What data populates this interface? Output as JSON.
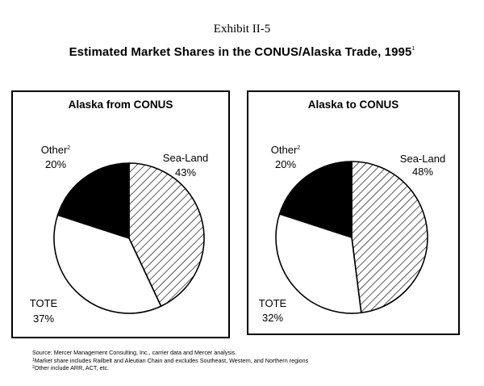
{
  "exhibit": "Exhibit II-5",
  "title": "Estimated Market Shares in the CONUS/Alaska Trade, 1995",
  "title_mark": "1",
  "chart_data": [
    {
      "type": "pie",
      "title": "Alaska from CONUS",
      "slices": [
        {
          "label": "Sea-Land",
          "value": 43,
          "display": "43%",
          "fill": "hatch"
        },
        {
          "label": "TOTE",
          "value": 37,
          "display": "37%",
          "fill": "#ffffff"
        },
        {
          "label": "Other",
          "mark": "2",
          "value": 20,
          "display": "20%",
          "fill": "#000000"
        }
      ]
    },
    {
      "type": "pie",
      "title": "Alaska to CONUS",
      "slices": [
        {
          "label": "Sea-Land",
          "value": 48,
          "display": "48%",
          "fill": "hatch"
        },
        {
          "label": "TOTE",
          "value": 32,
          "display": "32%",
          "fill": "#ffffff"
        },
        {
          "label": "Other",
          "mark": "2",
          "value": 20,
          "display": "20%",
          "fill": "#000000"
        }
      ]
    }
  ],
  "notes": {
    "source": "Source:  Mercer Management Consulting, Inc., carrier data and Mercer analysis.",
    "footnote1_mark": "1",
    "footnote1": "Market share includes Railbelt and Aleutian Chain and excludes Southeast, Western, and Northern regions",
    "footnote2_mark": "2",
    "footnote2": "Other include ARR, ACT, etc."
  }
}
